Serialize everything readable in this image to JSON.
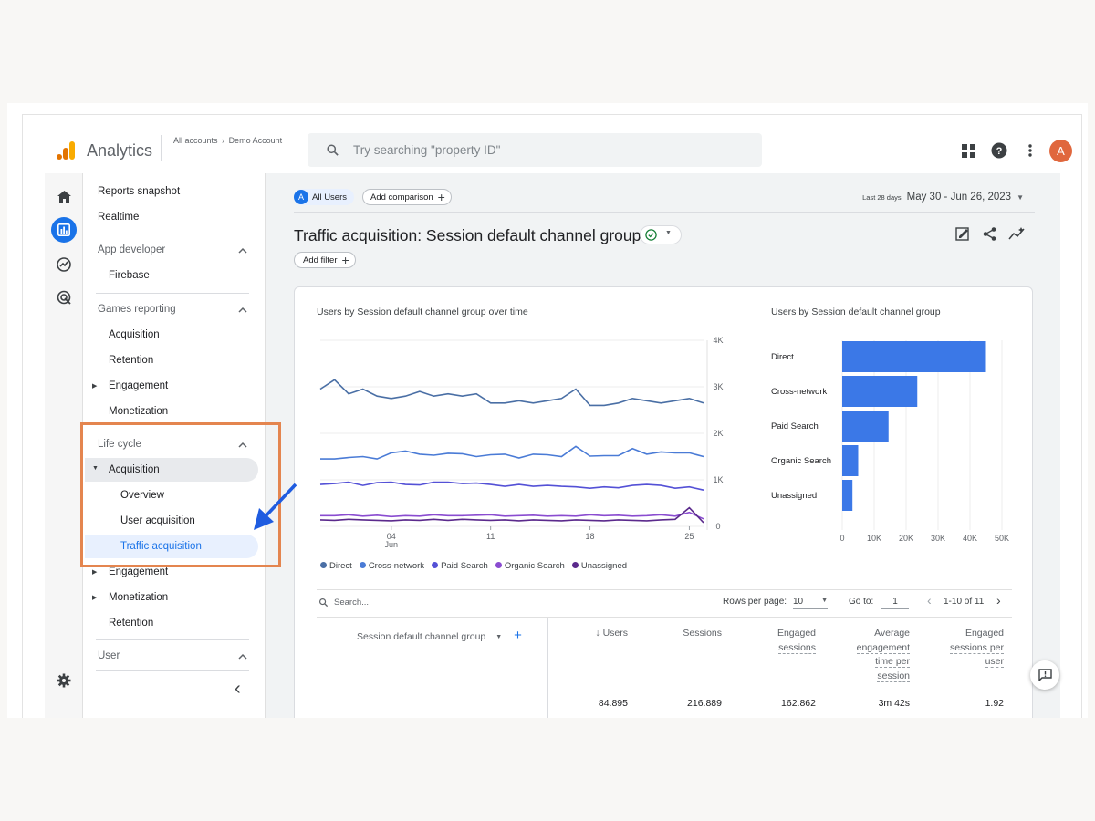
{
  "header": {
    "app_name": "Analytics",
    "breadcrumb": [
      "All accounts",
      "Demo Account"
    ],
    "search_placeholder": "Try searching \"property ID\"",
    "avatar_letter": "A",
    "icons": [
      "apps-grid-icon",
      "help-icon",
      "more-vert-icon"
    ]
  },
  "rail": [
    "home-icon",
    "reports-icon",
    "explore-icon",
    "advertising-icon",
    "settings-icon"
  ],
  "nav": {
    "reports_snapshot": "Reports snapshot",
    "realtime": "Realtime",
    "app_developer": "App developer",
    "firebase": "Firebase",
    "games_reporting": "Games reporting",
    "games_items": [
      "Acquisition",
      "Retention",
      "Engagement",
      "Monetization"
    ],
    "life_cycle": "Life cycle",
    "lc_acquisition": "Acquisition",
    "acq_items": [
      "Overview",
      "User acquisition",
      "Traffic acquisition"
    ],
    "lc_engagement": "Engagement",
    "lc_monetization": "Monetization",
    "lc_retention": "Retention",
    "user": "User",
    "collapse": "‹"
  },
  "toolbar": {
    "all_users_letter": "A",
    "all_users": "All Users",
    "add_comparison": "Add comparison",
    "date_label": "Last 28 days",
    "date_range": "May 30 - Jun 26, 2023"
  },
  "page": {
    "title": "Traffic acquisition: Session default channel group",
    "add_filter": "Add filter"
  },
  "chart_data": [
    {
      "type": "line",
      "title": "Users by Session default channel group over time",
      "x_ticks": [
        "04\nJun",
        "11",
        "18",
        "25"
      ],
      "y_ticks": [
        "4K",
        "3K",
        "2K",
        "1K",
        "0"
      ],
      "ylim": [
        0,
        4000
      ],
      "x": [
        30,
        31,
        1,
        2,
        3,
        4,
        5,
        6,
        7,
        8,
        9,
        10,
        11,
        12,
        13,
        14,
        15,
        16,
        17,
        18,
        19,
        20,
        21,
        22,
        23,
        24,
        25,
        26
      ],
      "series": [
        {
          "name": "Direct",
          "color": "#4a6fa5",
          "values": [
            2950,
            3150,
            2850,
            2950,
            2800,
            2750,
            2800,
            2900,
            2800,
            2850,
            2800,
            2850,
            2650,
            2650,
            2700,
            2650,
            2700,
            2750,
            2950,
            2600,
            2600,
            2650,
            2750,
            2700,
            2650,
            2700,
            2750,
            2650
          ]
        },
        {
          "name": "Cross-network",
          "color": "#4a7bd6",
          "values": [
            1450,
            1450,
            1480,
            1500,
            1450,
            1580,
            1620,
            1550,
            1530,
            1570,
            1560,
            1500,
            1540,
            1550,
            1470,
            1550,
            1540,
            1500,
            1720,
            1510,
            1520,
            1520,
            1670,
            1550,
            1600,
            1580,
            1580,
            1500
          ]
        },
        {
          "name": "Paid Search",
          "color": "#5451d6",
          "values": [
            900,
            920,
            950,
            880,
            940,
            950,
            900,
            890,
            950,
            950,
            920,
            930,
            900,
            860,
            900,
            860,
            880,
            860,
            850,
            820,
            850,
            830,
            880,
            900,
            880,
            820,
            850,
            780
          ]
        },
        {
          "name": "Organic Search",
          "color": "#8a4cd0",
          "values": [
            230,
            230,
            250,
            220,
            240,
            210,
            230,
            220,
            250,
            230,
            230,
            240,
            250,
            220,
            230,
            240,
            220,
            230,
            220,
            250,
            230,
            240,
            220,
            230,
            250,
            220,
            300,
            160
          ]
        },
        {
          "name": "Unassigned",
          "color": "#5b2a8c",
          "values": [
            140,
            130,
            150,
            140,
            130,
            120,
            140,
            130,
            150,
            130,
            150,
            140,
            130,
            140,
            120,
            140,
            130,
            120,
            140,
            130,
            120,
            140,
            130,
            120,
            140,
            150,
            400,
            80
          ]
        }
      ]
    },
    {
      "type": "bar",
      "title": "Users by Session default channel group",
      "categories": [
        "Direct",
        "Cross-network",
        "Paid Search",
        "Organic Search",
        "Unassigned"
      ],
      "values": [
        45000,
        23500,
        14500,
        5000,
        3200
      ],
      "x_ticks": [
        "0",
        "10K",
        "20K",
        "30K",
        "40K",
        "50K"
      ],
      "xlim": [
        0,
        50000
      ],
      "color": "#3b78e7"
    }
  ],
  "legend": [
    {
      "label": "Direct",
      "color": "#4a6fa5"
    },
    {
      "label": "Cross-network",
      "color": "#4a7bd6"
    },
    {
      "label": "Paid Search",
      "color": "#5451d6"
    },
    {
      "label": "Organic Search",
      "color": "#8a4cd0"
    },
    {
      "label": "Unassigned",
      "color": "#5b2a8c"
    }
  ],
  "table": {
    "search_placeholder": "Search...",
    "rows_per_page_label": "Rows per page:",
    "rows_per_page": "10",
    "goto_label": "Go to:",
    "goto_value": "1",
    "page_range": "1-10 of 11",
    "dimension_header": "Session default channel group",
    "columns": [
      {
        "label": "Users",
        "lines": [
          "Users"
        ],
        "total": "84.895",
        "sorted": true
      },
      {
        "label": "Sessions",
        "lines": [
          "Sessions"
        ],
        "total": "216.889"
      },
      {
        "label": "Engaged sessions",
        "lines": [
          "Engaged",
          "sessions"
        ],
        "total": "162.862"
      },
      {
        "label": "Average engagement time per session",
        "lines": [
          "Average",
          "engagement",
          "time per",
          "session"
        ],
        "total": "3m 42s"
      },
      {
        "label": "Engaged sessions per user",
        "lines": [
          "Engaged",
          "sessions per",
          "user"
        ],
        "total": "1.92"
      }
    ]
  }
}
